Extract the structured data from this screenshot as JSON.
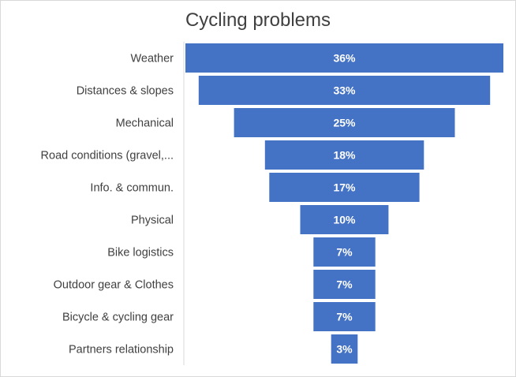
{
  "chart_data": {
    "type": "bar",
    "orientation": "horizontal",
    "layout": "funnel",
    "title": "Cycling problems",
    "categories": [
      "Weather",
      "Distances & slopes",
      "Mechanical",
      "Road conditions (gravel,...",
      "Info. & commun.",
      "Physical",
      "Bike logistics",
      "Outdoor gear & Clothes",
      "Bicycle & cycling gear",
      "Partners relationship"
    ],
    "values": [
      36,
      33,
      25,
      18,
      17,
      10,
      7,
      7,
      7,
      3
    ],
    "value_labels": [
      "36%",
      "33%",
      "25%",
      "18%",
      "17%",
      "10%",
      "7%",
      "7%",
      "7%",
      "3%"
    ],
    "bar_color": "#4472C4",
    "grid": false,
    "legend": "none"
  }
}
